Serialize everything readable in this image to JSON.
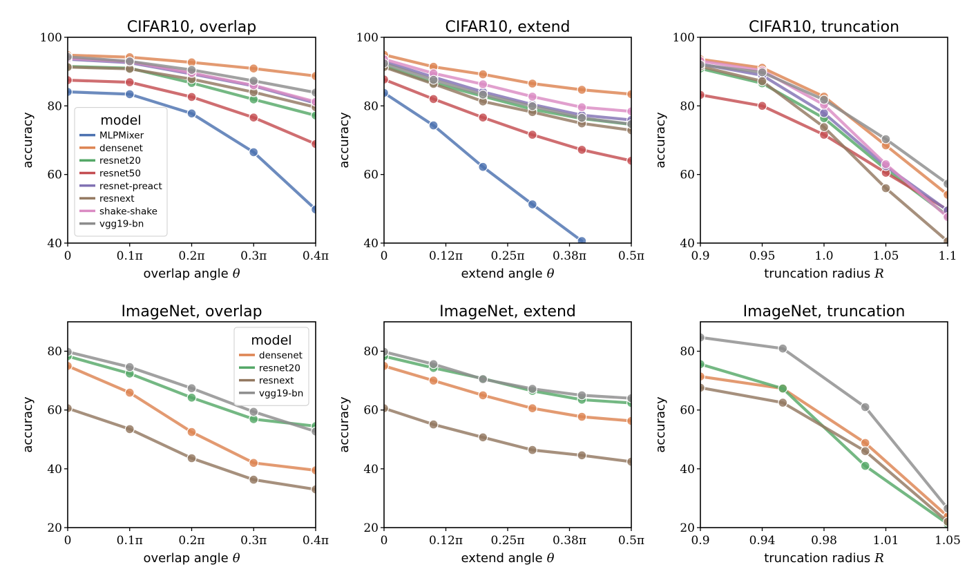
{
  "colors": {
    "MLPMixer": "#4c72b0",
    "densenet": "#dd8452",
    "resnet20": "#55a868",
    "resnet50": "#c44e52",
    "resnet-preact": "#8172b3",
    "resnext": "#937860",
    "shake-shake": "#da8bc3",
    "vgg19-bn": "#8c8c8c"
  },
  "chart_data": [
    {
      "type": "line",
      "title": "CIFAR10, overlap",
      "xlabel": "overlap angle",
      "xlabel_symbol": "θ",
      "ylabel": "accuracy",
      "x": [
        0,
        0.1,
        0.2,
        0.3,
        0.4
      ],
      "xticklabels": [
        "0",
        "0.1π",
        "0.2π",
        "0.3π",
        "0.4π"
      ],
      "ylim": [
        40,
        100
      ],
      "yticks": [
        40,
        60,
        80,
        100
      ],
      "legend": {
        "title": "model",
        "placement": "lower-left"
      },
      "series": [
        {
          "name": "MLPMixer",
          "values": [
            84.1,
            83.4,
            77.8,
            66.5,
            49.8
          ]
        },
        {
          "name": "densenet",
          "values": [
            94.8,
            94.2,
            92.7,
            90.9,
            88.7
          ]
        },
        {
          "name": "resnet20",
          "values": [
            91.5,
            91.0,
            86.7,
            81.9,
            77.2
          ]
        },
        {
          "name": "resnet50",
          "values": [
            87.5,
            86.9,
            82.6,
            76.6,
            68.9
          ]
        },
        {
          "name": "resnet-preact",
          "values": [
            93.6,
            92.6,
            89.3,
            85.8,
            80.8
          ]
        },
        {
          "name": "resnext",
          "values": [
            91.3,
            90.8,
            87.8,
            84.0,
            79.6
          ]
        },
        {
          "name": "shake-shake",
          "values": [
            93.9,
            92.9,
            89.6,
            86.0,
            81.2
          ]
        },
        {
          "name": "vgg19-bn",
          "values": [
            94.3,
            93.0,
            90.5,
            87.3,
            83.9
          ]
        }
      ]
    },
    {
      "type": "line",
      "title": "CIFAR10, extend",
      "xlabel": "extend angle",
      "xlabel_symbol": "θ",
      "ylabel": "accuracy",
      "x": [
        0,
        0.1,
        0.2,
        0.3,
        0.4,
        0.5
      ],
      "xticks": [
        0,
        0.125,
        0.25,
        0.375,
        0.5
      ],
      "xticklabels": [
        "0",
        "0.12π",
        "0.25π",
        "0.38π",
        "0.5π"
      ],
      "ylim": [
        40,
        100
      ],
      "yticks": [
        40,
        60,
        80,
        100
      ],
      "series": [
        {
          "name": "MLPMixer",
          "values": [
            83.8,
            74.3,
            62.2,
            51.3,
            40.6,
            null
          ]
        },
        {
          "name": "densenet",
          "values": [
            94.9,
            91.4,
            89.2,
            86.5,
            84.7,
            83.4
          ]
        },
        {
          "name": "resnet20",
          "values": [
            91.6,
            86.7,
            82.8,
            79.0,
            76.3,
            74.6
          ]
        },
        {
          "name": "resnet50",
          "values": [
            87.7,
            82.0,
            76.6,
            71.6,
            67.2,
            64.0
          ]
        },
        {
          "name": "resnet-preact",
          "values": [
            92.9,
            88.4,
            84.1,
            80.4,
            77.3,
            75.9
          ]
        },
        {
          "name": "resnext",
          "values": [
            91.3,
            86.4,
            81.3,
            78.2,
            74.9,
            72.9
          ]
        },
        {
          "name": "shake-shake",
          "values": [
            93.6,
            89.5,
            86.3,
            82.7,
            79.6,
            78.4
          ]
        },
        {
          "name": "vgg19-bn",
          "values": [
            92.4,
            87.6,
            83.3,
            79.9,
            76.5,
            74.7
          ]
        }
      ]
    },
    {
      "type": "line",
      "title": "CIFAR10, truncation",
      "xlabel": "truncation radius",
      "xlabel_symbol": "R",
      "ylabel": "accuracy",
      "x": [
        0.9,
        0.95,
        1.0,
        1.05,
        1.1
      ],
      "xticklabels": [
        "0.9",
        "0.95",
        "1.0",
        "1.05",
        "1.1"
      ],
      "ylim": [
        40,
        100
      ],
      "yticks": [
        40,
        60,
        80,
        100
      ],
      "series": [
        {
          "name": "densenet",
          "values": [
            93.6,
            91.1,
            82.7,
            68.5,
            54.1
          ]
        },
        {
          "name": "resnet20",
          "values": [
            90.9,
            86.6,
            76.4,
            61.5,
            48.0
          ]
        },
        {
          "name": "resnet50",
          "values": [
            83.2,
            80.0,
            71.6,
            60.5,
            49.7
          ]
        },
        {
          "name": "resnet-preact",
          "values": [
            92.2,
            88.9,
            77.9,
            62.4,
            49.5
          ]
        },
        {
          "name": "resnext",
          "values": [
            91.5,
            87.2,
            73.8,
            56.0,
            40.5
          ]
        },
        {
          "name": "shake-shake",
          "values": [
            93.1,
            90.3,
            80.3,
            63.0,
            47.6
          ]
        },
        {
          "name": "vgg19-bn",
          "values": [
            92.0,
            89.8,
            81.8,
            70.3,
            57.3
          ]
        }
      ]
    },
    {
      "type": "line",
      "title": "ImageNet, overlap",
      "xlabel": "overlap angle",
      "xlabel_symbol": "θ",
      "ylabel": "accuracy",
      "x": [
        0,
        0.1,
        0.2,
        0.3,
        0.4
      ],
      "xticklabels": [
        "0",
        "0.1π",
        "0.2π",
        "0.3π",
        "0.4π"
      ],
      "ylim": [
        20,
        90
      ],
      "yticks": [
        20,
        40,
        60,
        80
      ],
      "legend": {
        "title": "model",
        "placement": "upper-right"
      },
      "series": [
        {
          "name": "densenet",
          "values": [
            75.0,
            65.9,
            52.5,
            42.0,
            39.5
          ]
        },
        {
          "name": "resnet20",
          "values": [
            78.3,
            72.4,
            64.2,
            56.9,
            54.5
          ]
        },
        {
          "name": "resnext",
          "values": [
            60.6,
            53.5,
            43.6,
            36.3,
            33.0
          ]
        },
        {
          "name": "vgg19-bn",
          "values": [
            79.8,
            74.6,
            67.4,
            59.4,
            52.7
          ]
        }
      ]
    },
    {
      "type": "line",
      "title": "ImageNet, extend",
      "xlabel": "extend angle",
      "xlabel_symbol": "θ",
      "ylabel": "accuracy",
      "x": [
        0,
        0.1,
        0.2,
        0.3,
        0.4,
        0.5
      ],
      "xticks": [
        0,
        0.125,
        0.25,
        0.375,
        0.5
      ],
      "xticklabels": [
        "0",
        "0.12π",
        "0.25π",
        "0.38π",
        "0.5π"
      ],
      "ylim": [
        20,
        90
      ],
      "yticks": [
        20,
        40,
        60,
        80
      ],
      "series": [
        {
          "name": "densenet",
          "values": [
            75.0,
            70.0,
            65.0,
            60.6,
            57.7,
            56.3
          ]
        },
        {
          "name": "resnet20",
          "values": [
            78.3,
            74.3,
            70.7,
            66.5,
            63.5,
            62.4
          ]
        },
        {
          "name": "resnext",
          "values": [
            60.6,
            55.1,
            50.7,
            46.4,
            44.6,
            42.4
          ]
        },
        {
          "name": "vgg19-bn",
          "values": [
            79.8,
            75.6,
            70.5,
            67.2,
            65.0,
            64.0
          ]
        }
      ]
    },
    {
      "type": "line",
      "title": "ImageNet, truncation",
      "xlabel": "truncation radius",
      "xlabel_symbol": "R",
      "ylabel": "accuracy",
      "x": [
        0.9,
        0.95,
        1.0,
        1.05
      ],
      "xticks": [
        0.9,
        0.9375,
        0.975,
        1.0125,
        1.05
      ],
      "xticklabels": [
        "0.9",
        "0.94",
        "0.98",
        "1.01",
        "1.05"
      ],
      "ylim": [
        20,
        90
      ],
      "yticks": [
        20,
        40,
        60,
        80
      ],
      "series": [
        {
          "name": "densenet",
          "values": [
            71.4,
            67.3,
            48.8,
            23.8
          ]
        },
        {
          "name": "resnet20",
          "values": [
            75.6,
            67.3,
            41.0,
            21.3
          ]
        },
        {
          "name": "resnext",
          "values": [
            67.6,
            62.5,
            46.0,
            22.0
          ]
        },
        {
          "name": "vgg19-bn",
          "values": [
            84.7,
            80.9,
            61.0,
            26.5
          ]
        }
      ]
    }
  ]
}
